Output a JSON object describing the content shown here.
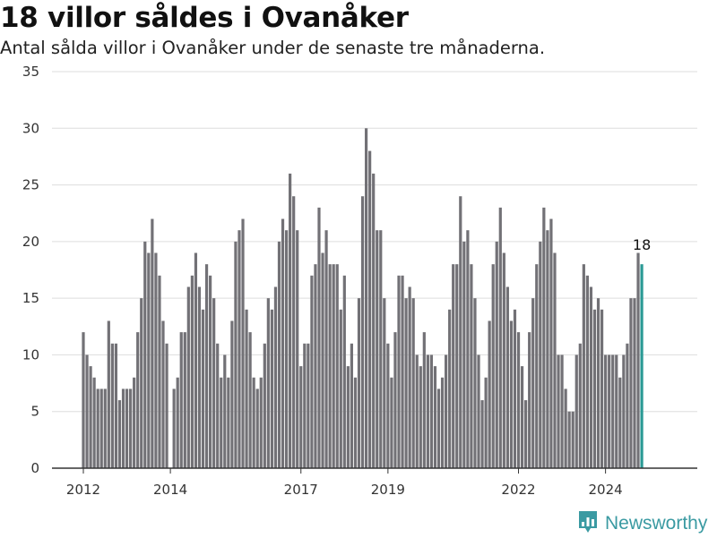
{
  "header": {
    "title": "18 villor såldes i Ovanåker",
    "subtitle": "Antal sålda villor i Ovanåker under de senaste tre månaderna."
  },
  "brand": {
    "name": "Newsworthy",
    "icon": "newsworthy-logo-icon",
    "color": "#3a9aa2"
  },
  "colors": {
    "bar": "#727176",
    "highlight": "#2b9a95",
    "grid": "#dddddd",
    "axis": "#333333"
  },
  "chart_data": {
    "type": "bar",
    "title": "18 villor såldes i Ovanåker",
    "subtitle": "Antal sålda villor i Ovanåker under de senaste tre månaderna.",
    "xlabel": "",
    "ylabel": "",
    "ylim": [
      0,
      35
    ],
    "yticks": [
      0,
      5,
      10,
      15,
      20,
      25,
      30,
      35
    ],
    "x_start": "2012-01",
    "x_end": "2024-09",
    "x_tick_labels": [
      "2012",
      "2014",
      "2017",
      "2019",
      "2022",
      "2024"
    ],
    "x_tick_dates": [
      "2012-01",
      "2014-01",
      "2017-01",
      "2019-01",
      "2022-01",
      "2024-01"
    ],
    "grid": true,
    "values": [
      12,
      10,
      9,
      8,
      7,
      7,
      7,
      13,
      11,
      11,
      6,
      7,
      7,
      7,
      8,
      12,
      15,
      20,
      19,
      22,
      19,
      17,
      13,
      11,
      0,
      7,
      8,
      12,
      12,
      16,
      17,
      19,
      16,
      14,
      18,
      17,
      15,
      11,
      8,
      10,
      8,
      13,
      20,
      21,
      22,
      14,
      12,
      8,
      7,
      8,
      11,
      15,
      14,
      16,
      20,
      22,
      21,
      26,
      24,
      21,
      9,
      11,
      11,
      17,
      18,
      23,
      19,
      21,
      18,
      18,
      18,
      14,
      17,
      9,
      11,
      8,
      15,
      24,
      30,
      28,
      26,
      21,
      21,
      15,
      11,
      8,
      12,
      17,
      17,
      15,
      16,
      15,
      10,
      9,
      12,
      10,
      10,
      9,
      7,
      8,
      10,
      14,
      18,
      18,
      24,
      20,
      21,
      18,
      15,
      10,
      6,
      8,
      13,
      18,
      20,
      23,
      19,
      16,
      13,
      14,
      12,
      9,
      6,
      12,
      15,
      18,
      20,
      23,
      21,
      22,
      19,
      10,
      10,
      7,
      5,
      5,
      10,
      11,
      18,
      17,
      16,
      14,
      15,
      14,
      10,
      10,
      10,
      10,
      8,
      10,
      11,
      15,
      15,
      19,
      18
    ],
    "highlight_label": "18"
  }
}
